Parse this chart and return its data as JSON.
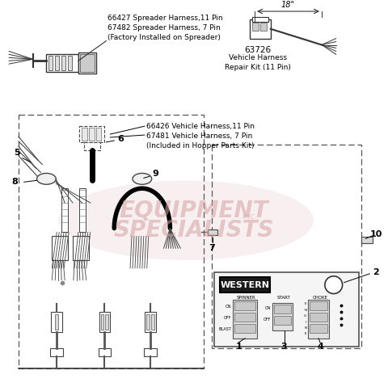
{
  "bg_color": "#ffffff",
  "fig_width": 4.8,
  "fig_height": 4.79,
  "dpi": 100,
  "watermark_line1": "EQUIPMENT",
  "watermark_line2": "inc.",
  "watermark_line3": "SPECIALISTS",
  "watermark_color": "#d4a0a0",
  "watermark_alpha": 0.55,
  "top_left_label": "66427 Spreader Harness,11 Pin\n67482 Spreader Harness, 7 Pin\n(Factory Installed on Spreader)",
  "top_right_num": "63726",
  "top_right_label": "Vehicle Harness\nRepair Kit (11 Pin)",
  "dim_label": "18\"",
  "mid_label_1": "66426 Vehicle Harness,11 Pin",
  "mid_label_2": "67481 Vehicle Harness, 7 Pin",
  "mid_label_3": "(Included in Hopper Parts Kit)",
  "western_logo": "WESTERN",
  "spinner_label": "SPINNER",
  "start_label": "START",
  "choke_label": "CHOKE",
  "on_label": "ON",
  "off_label": "OFF",
  "blast_label": "BLAST"
}
